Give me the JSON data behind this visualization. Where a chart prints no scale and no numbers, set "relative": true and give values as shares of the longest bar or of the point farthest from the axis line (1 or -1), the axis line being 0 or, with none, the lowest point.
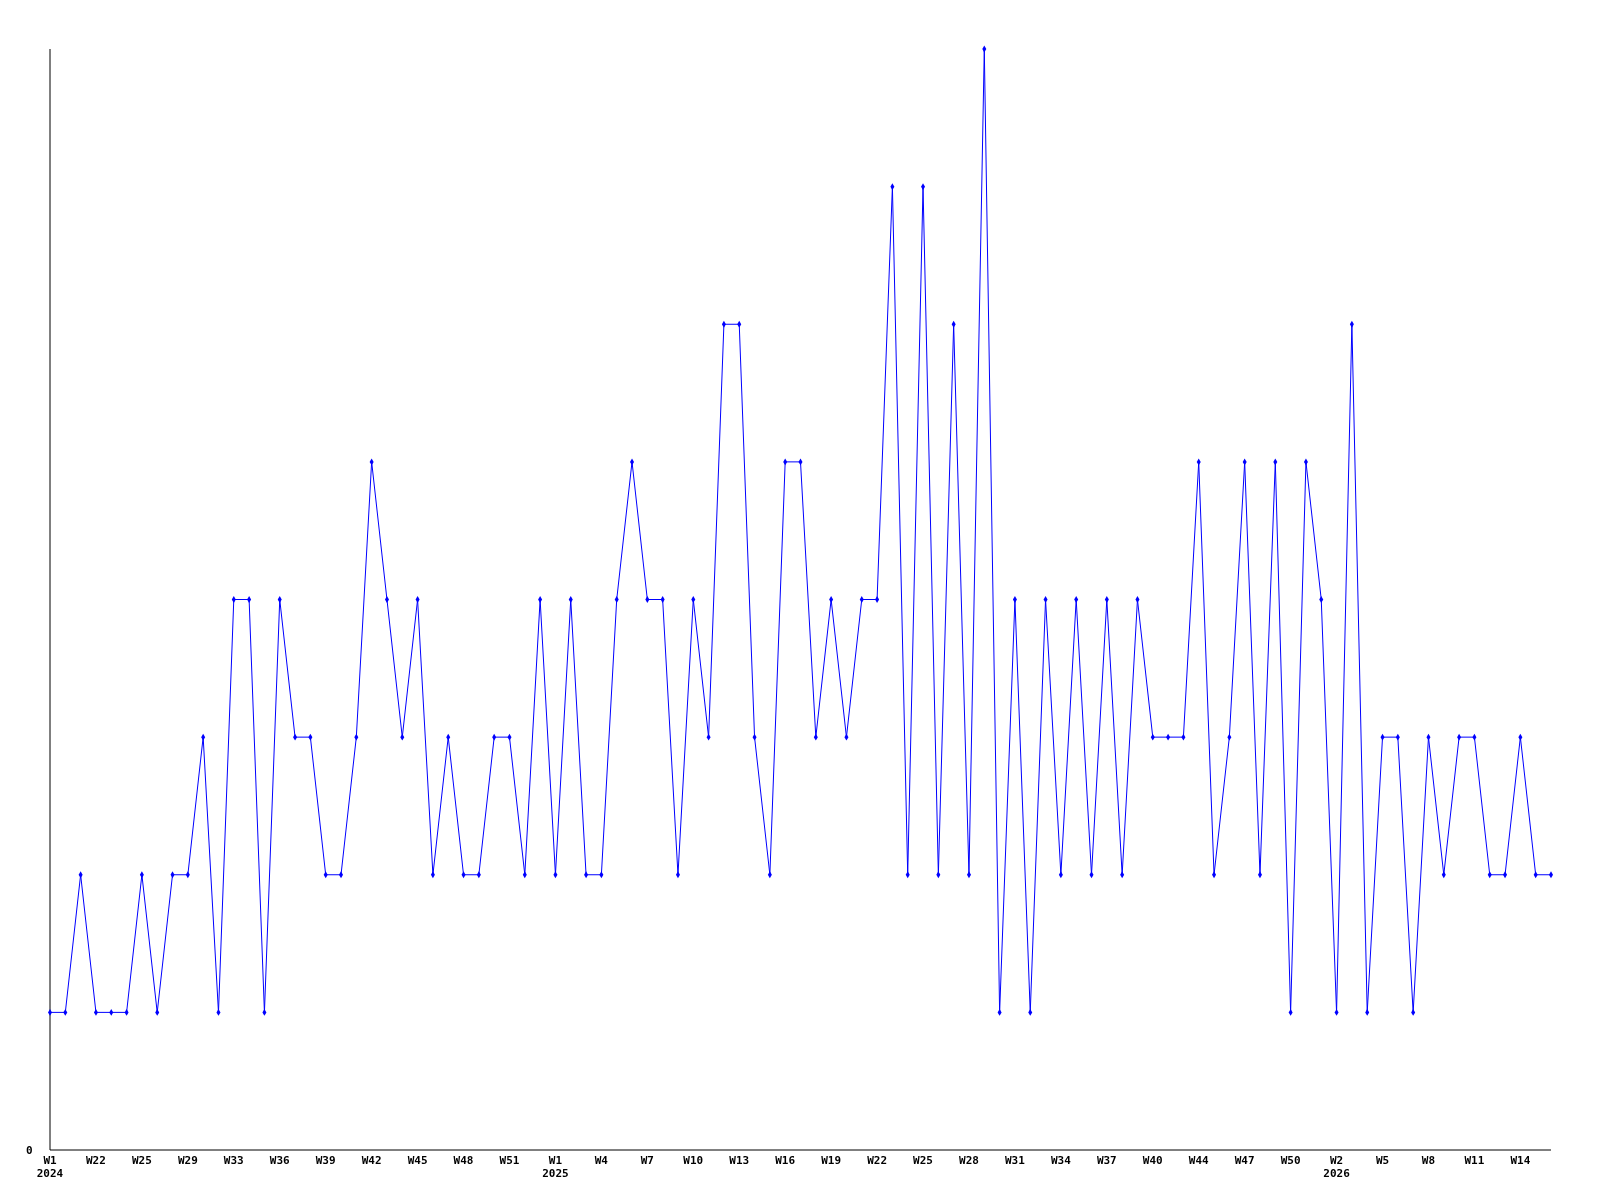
{
  "chart_data": {
    "type": "line",
    "relative": true,
    "marker": "diamond",
    "line_style": "solid",
    "grid": false,
    "annotations": [
      "0"
    ],
    "categories": [
      "W1\n2024",
      null,
      null,
      "W22",
      null,
      null,
      "W25",
      null,
      null,
      "W29",
      null,
      null,
      "W33",
      null,
      null,
      "W36",
      null,
      null,
      "W39",
      null,
      null,
      "W42",
      null,
      null,
      "W45",
      null,
      null,
      "W48",
      null,
      null,
      "W51",
      null,
      null,
      "W1\n2025",
      null,
      null,
      "W4",
      null,
      null,
      "W7",
      null,
      null,
      "W10",
      null,
      null,
      "W13",
      null,
      null,
      "W16",
      null,
      null,
      "W19",
      null,
      null,
      "W22",
      null,
      null,
      "W25",
      null,
      null,
      "W28",
      null,
      null,
      "W31",
      null,
      null,
      "W34",
      null,
      null,
      "W37",
      null,
      null,
      "W40",
      null,
      null,
      "W44",
      null,
      null,
      "W47",
      null,
      null,
      "W50",
      null,
      null,
      "W2\n2026",
      null,
      null,
      "W5",
      null,
      null,
      "W8",
      null,
      null,
      "W11",
      null,
      null,
      "W14",
      null,
      null
    ],
    "series": [
      {
        "color": "#0000ff",
        "values": [
          0.125,
          0.125,
          0.25,
          0.125,
          0.125,
          0.125,
          0.25,
          0.125,
          0.25,
          0.25,
          0.375,
          0.125,
          0.5,
          0.5,
          0.125,
          0.5,
          0.375,
          0.375,
          0.25,
          0.25,
          0.375,
          0.625,
          0.5,
          0.375,
          0.5,
          0.25,
          0.375,
          0.25,
          0.25,
          0.375,
          0.375,
          0.25,
          0.5,
          0.25,
          0.5,
          0.25,
          0.25,
          0.5,
          0.625,
          0.5,
          0.5,
          0.25,
          0.5,
          0.375,
          0.75,
          0.75,
          0.375,
          0.25,
          0.625,
          0.625,
          0.375,
          0.5,
          0.375,
          0.5,
          0.5,
          0.875,
          0.25,
          0.875,
          0.25,
          0.75,
          0.25,
          1,
          0.125,
          0.5,
          0.125,
          0.5,
          0.25,
          0.5,
          0.25,
          0.5,
          0.25,
          0.5,
          0.375,
          0.375,
          0.375,
          0.625,
          0.25,
          0.375,
          0.625,
          0.25,
          0.625,
          0.125,
          0.625,
          0.5,
          0.125,
          0.75,
          0.125,
          0.375,
          0.375,
          0.125,
          0.375,
          0.25,
          0.375,
          0.375,
          0.25,
          0.25,
          0.375,
          0.25,
          0.25
        ]
      }
    ]
  }
}
